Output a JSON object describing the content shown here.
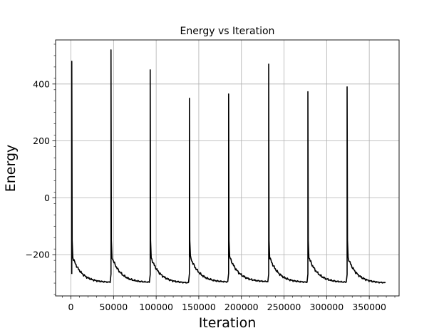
{
  "chart_data": {
    "type": "line",
    "title": "Energy vs Iteration",
    "xlabel": "Iteration",
    "ylabel": "Energy",
    "xlim": [
      -18000,
      385000
    ],
    "ylim": [
      -345,
      555
    ],
    "grid": true,
    "line_color": "#000000",
    "grid_color": "#b0b0b0",
    "xticks": [
      0,
      50000,
      100000,
      150000,
      200000,
      250000,
      300000,
      350000
    ],
    "xtick_labels": [
      "0",
      "50000",
      "100000",
      "150000",
      "200000",
      "250000",
      "300000",
      "350000"
    ],
    "yticks": [
      -200,
      0,
      200,
      400
    ],
    "ytick_labels": [
      "−200",
      "0",
      "200",
      "400"
    ],
    "series": [
      {
        "name": "Energy",
        "segments": [
          {
            "start": 1000,
            "end": 46000,
            "peak": 480,
            "final": -298
          },
          {
            "start": 47000,
            "end": 92000,
            "peak": 520,
            "final": -298
          },
          {
            "start": 93000,
            "end": 138000,
            "peak": 450,
            "final": -300
          },
          {
            "start": 139000,
            "end": 184000,
            "peak": 350,
            "final": -297
          },
          {
            "start": 185000,
            "end": 231000,
            "peak": 365,
            "final": -296
          },
          {
            "start": 232000,
            "end": 277000,
            "peak": 470,
            "final": -298
          },
          {
            "start": 278000,
            "end": 323000,
            "peak": 373,
            "final": -298
          },
          {
            "start": 324000,
            "end": 369000,
            "peak": 390,
            "final": -300
          }
        ]
      }
    ]
  }
}
